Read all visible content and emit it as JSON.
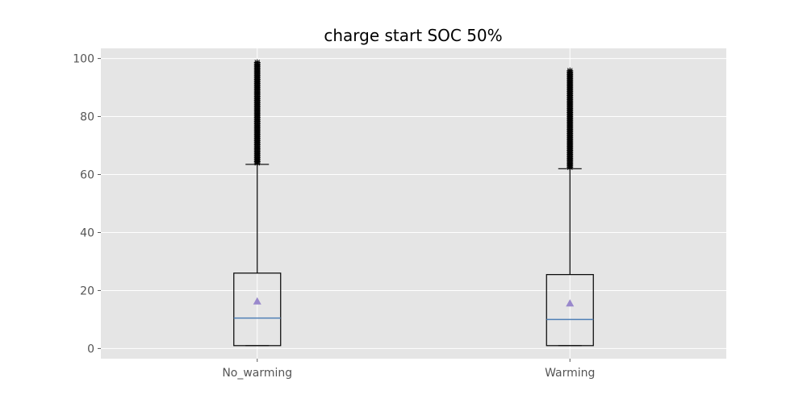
{
  "chart_data": {
    "type": "box",
    "title": "charge start SOC 50%",
    "xlabel": "",
    "ylabel": "",
    "categories": [
      "No_warming",
      "Warming"
    ],
    "ylim": [
      -3.5,
      103.5
    ],
    "yticks": [
      0,
      20,
      40,
      60,
      80,
      100
    ],
    "grid": true,
    "colors": {
      "plot_background": "#e5e5e5",
      "grid": "#ffffff",
      "box": "#000000",
      "median": "#4f7fb6",
      "mean_marker": "#9988cc",
      "flier": "#000000"
    },
    "series": [
      {
        "category": "No_warming",
        "min": 1,
        "q1": 1,
        "median": 10.5,
        "q3": 26,
        "max": 63.5,
        "mean": 16.3,
        "outliers_range": [
          64,
          99
        ]
      },
      {
        "category": "Warming",
        "min": 1,
        "q1": 1,
        "median": 10,
        "q3": 25.5,
        "max": 62,
        "mean": 15.6,
        "outliers_range": [
          62.5,
          96
        ]
      }
    ]
  }
}
